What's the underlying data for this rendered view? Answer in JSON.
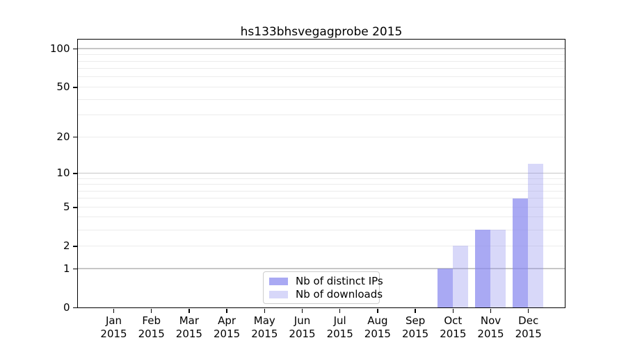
{
  "chart_data": {
    "type": "bar",
    "title": "hs133bhsvegagprobe 2015",
    "categories": [
      "Jan",
      "Feb",
      "Mar",
      "Apr",
      "May",
      "Jun",
      "Jul",
      "Aug",
      "Sep",
      "Oct",
      "Nov",
      "Dec"
    ],
    "xtick_year": "2015",
    "series": [
      {
        "name": "Nb of distinct IPs",
        "color": "#a9a9f3",
        "color_rgba": "rgba(136,136,238,0.72)",
        "values": [
          0,
          0,
          0,
          0,
          0,
          0,
          0,
          0,
          0,
          1,
          3,
          6
        ]
      },
      {
        "name": "Nb of downloads",
        "color": "#d7d7f9",
        "color_rgba": "rgba(136,136,238,0.33)",
        "values": [
          0,
          0,
          0,
          0,
          0,
          0,
          0,
          0,
          0,
          2,
          3,
          12
        ]
      }
    ],
    "xlabel": "",
    "ylabel": "",
    "yscale": "log1p",
    "ylim": [
      0,
      119
    ],
    "yticks": [
      0,
      1,
      2,
      5,
      10,
      20,
      50,
      100
    ],
    "grid": {
      "on": true,
      "major_values": [
        1,
        10,
        100
      ],
      "minor_values": [
        2,
        3,
        4,
        5,
        6,
        7,
        8,
        9,
        20,
        30,
        40,
        50,
        60,
        70,
        80,
        90
      ],
      "major_color": "#c6c6c6",
      "minor_color": "#ececec"
    },
    "legend": {
      "position": "lower center inside"
    },
    "axis_color": "#000000"
  }
}
